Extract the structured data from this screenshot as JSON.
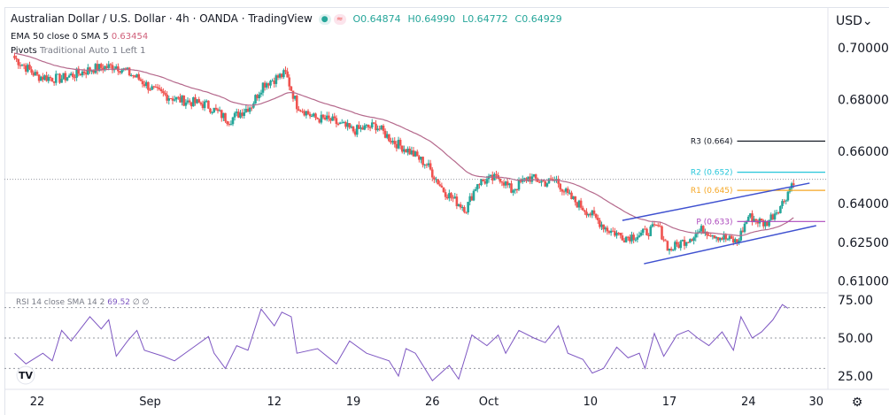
{
  "header": {
    "symbol_title": "Australian Dollar / U.S. Dollar · 4h · OANDA · TradingView",
    "ohlc": {
      "open": "O0.64874",
      "high": "H0.64990",
      "low": "L0.64772",
      "close": "C0.64929"
    },
    "ema_label": "EMA 50 close 0 SMA 5",
    "ema_value": "0.63454",
    "pivots_label": "Pivots",
    "pivots_params": "Traditional Auto 1 Left 1",
    "rsi_label": "RSI 14 close SMA 14 2",
    "rsi_value": "69.52",
    "rsi_extra": "∅ ∅"
  },
  "colors": {
    "up": "#26a69a",
    "down": "#ef5350",
    "ema": "#b5698c",
    "rsi": "#7e57c2",
    "channel": "#3f51d0",
    "r3": "#131722",
    "r2": "#26c6da",
    "r1": "#f5a623",
    "p": "#ab47bc"
  },
  "chart_data": [
    {
      "type": "candlestick",
      "title": "Australian Dollar / U.S. Dollar · 4h · OANDA",
      "ylabel": "USD",
      "currency_label": "USD",
      "yticks": [
        "0.70000",
        "0.68000",
        "0.66000",
        "0.64000",
        "0.62500",
        "0.61000"
      ],
      "ytick_values": [
        0.7,
        0.68,
        0.66,
        0.64,
        0.625,
        0.61
      ],
      "xticks": [
        "22",
        "Sep",
        "12",
        "19",
        "26",
        "Oct",
        "10",
        "17",
        "24",
        "30"
      ],
      "xtick_dates": [
        "08-22 00",
        "09-01 00",
        "09-12 00",
        "09-19 00",
        "09-26 00",
        "10-01 00",
        "10-10 00",
        "10-17 00",
        "10-24 00",
        "10-30 00"
      ],
      "close_path": [
        [
          "08-20 00",
          0.696
        ],
        [
          "08-22 00",
          0.689
        ],
        [
          "08-24 00",
          0.688
        ],
        [
          "08-27 00",
          0.692
        ],
        [
          "08-29 00",
          0.693
        ],
        [
          "08-31 00",
          0.688
        ],
        [
          "09-01 12",
          0.683
        ],
        [
          "09-03 12",
          0.68
        ],
        [
          "09-06 00",
          0.678
        ],
        [
          "09-08 00",
          0.672
        ],
        [
          "09-10 00",
          0.678
        ],
        [
          "09-11 00",
          0.686
        ],
        [
          "09-13 00",
          0.69
        ],
        [
          "09-14 00",
          0.678
        ],
        [
          "09-15 12",
          0.673
        ],
        [
          "09-17 00",
          0.672
        ],
        [
          "09-19 00",
          0.668
        ],
        [
          "09-21 00",
          0.67
        ],
        [
          "09-22 12",
          0.664
        ],
        [
          "09-24 00",
          0.66
        ],
        [
          "09-25 12",
          0.655
        ],
        [
          "09-27 00",
          0.645
        ],
        [
          "09-28 00",
          0.641
        ],
        [
          "09-29 00",
          0.638
        ],
        [
          "09-30 00",
          0.648
        ],
        [
          "10-02 00",
          0.65
        ],
        [
          "10-03 00",
          0.645
        ],
        [
          "10-04 12",
          0.65
        ],
        [
          "10-06 00",
          0.648
        ],
        [
          "10-07 00",
          0.649
        ],
        [
          "10-08 00",
          0.643
        ],
        [
          "10-10 00",
          0.636
        ],
        [
          "10-11 12",
          0.63
        ],
        [
          "10-13 00",
          0.627
        ],
        [
          "10-14 12",
          0.628
        ],
        [
          "10-16 00",
          0.631
        ],
        [
          "10-17 00",
          0.622
        ],
        [
          "10-18 12",
          0.626
        ],
        [
          "10-20 00",
          0.63
        ],
        [
          "10-21 12",
          0.627
        ],
        [
          "10-23 00",
          0.625
        ],
        [
          "10-24 00",
          0.635
        ],
        [
          "10-25 12",
          0.632
        ],
        [
          "10-27 00",
          0.64
        ],
        [
          "10-28 00",
          0.649
        ]
      ],
      "last_price": 0.64929,
      "pivots": [
        {
          "label": "R3 (0.664)",
          "value": 0.664,
          "color": "#131722"
        },
        {
          "label": "R2 (0.652)",
          "value": 0.652,
          "color": "#26c6da"
        },
        {
          "label": "R1 (0.645)",
          "value": 0.645,
          "color": "#f5a623"
        },
        {
          "label": "P (0.633)",
          "value": 0.633,
          "color": "#ab47bc"
        }
      ],
      "pivot_start": "10-23 00",
      "channel": {
        "upper": [
          [
            "10-12 20",
            0.6334
          ],
          [
            "10-29 10",
            0.6478
          ]
        ],
        "lower": [
          [
            "10-14 18",
            0.6167
          ],
          [
            "10-30 00",
            0.6314
          ]
        ]
      },
      "ema_period": 50
    },
    {
      "type": "line",
      "title": "RSI 14 close SMA 14 2",
      "yticks": [
        "75.00",
        "50.00",
        "25.00"
      ],
      "ytick_values": [
        75,
        50,
        25
      ],
      "bands": [
        70,
        50,
        30
      ],
      "series": [
        [
          "08-20 00",
          40
        ],
        [
          "08-21 00",
          33
        ],
        [
          "08-22 12",
          40
        ],
        [
          "08-23 08",
          35
        ],
        [
          "08-24 04",
          55
        ],
        [
          "08-25 00",
          48
        ],
        [
          "08-26 16",
          64
        ],
        [
          "08-27 16",
          56
        ],
        [
          "08-28 08",
          62
        ],
        [
          "08-29 00",
          38
        ],
        [
          "08-30 00",
          48
        ],
        [
          "08-30 20",
          55
        ],
        [
          "08-31 12",
          42
        ],
        [
          "09-02 04",
          38
        ],
        [
          "09-03 04",
          35
        ],
        [
          "09-04 16",
          43
        ],
        [
          "09-06 04",
          51
        ],
        [
          "09-06 16",
          40
        ],
        [
          "09-07 16",
          30
        ],
        [
          "09-08 16",
          45
        ],
        [
          "09-09 16",
          42
        ],
        [
          "09-10 20",
          69
        ],
        [
          "09-12 00",
          58
        ],
        [
          "09-12 16",
          67
        ],
        [
          "09-13 12",
          64
        ],
        [
          "09-14 00",
          40
        ],
        [
          "09-15 20",
          43
        ],
        [
          "09-17 12",
          33
        ],
        [
          "09-18 16",
          48
        ],
        [
          "09-20 04",
          40
        ],
        [
          "09-22 04",
          35
        ],
        [
          "09-23 00",
          25
        ],
        [
          "09-23 16",
          43
        ],
        [
          "09-24 12",
          40
        ],
        [
          "09-26 00",
          22
        ],
        [
          "09-27 12",
          32
        ],
        [
          "09-28 08",
          23
        ],
        [
          "09-29 12",
          52
        ],
        [
          "09-30 20",
          45
        ],
        [
          "10-01 20",
          52
        ],
        [
          "10-02 12",
          40
        ],
        [
          "10-03 16",
          55
        ],
        [
          "10-05 00",
          50
        ],
        [
          "10-06 00",
          47
        ],
        [
          "10-07 04",
          58
        ],
        [
          "10-08 00",
          40
        ],
        [
          "10-09 08",
          36
        ],
        [
          "10-10 04",
          27
        ],
        [
          "10-11 04",
          30
        ],
        [
          "10-12 08",
          44
        ],
        [
          "10-13 08",
          37
        ],
        [
          "10-14 08",
          40
        ],
        [
          "10-14 20",
          30
        ],
        [
          "10-15 16",
          53
        ],
        [
          "10-16 12",
          38
        ],
        [
          "10-17 16",
          52
        ],
        [
          "10-18 16",
          55
        ],
        [
          "10-19 12",
          50
        ],
        [
          "10-20 12",
          45
        ],
        [
          "10-21 16",
          54
        ],
        [
          "10-22 16",
          42
        ],
        [
          "10-23 08",
          64
        ],
        [
          "10-24 08",
          50
        ],
        [
          "10-25 04",
          54
        ],
        [
          "10-26 04",
          62
        ],
        [
          "10-27 00",
          72
        ],
        [
          "10-27 12",
          69.52
        ]
      ]
    }
  ]
}
